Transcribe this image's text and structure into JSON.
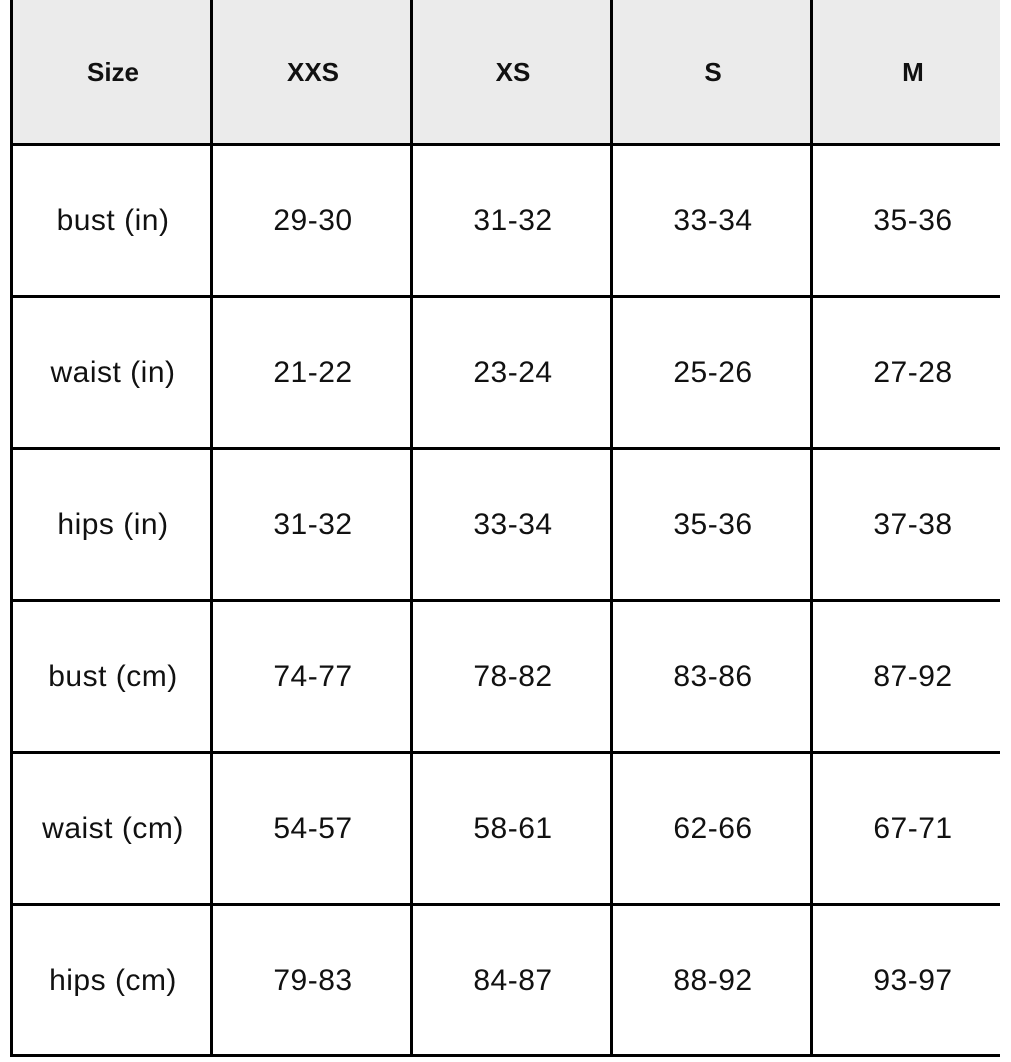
{
  "table": {
    "header_bg": "#ebebeb",
    "border_color": "#000000",
    "columns": [
      "Size",
      "XXS",
      "XS",
      "S",
      "M"
    ],
    "rows": [
      [
        "bust (in)",
        "29-30",
        "31-32",
        "33-34",
        "35-36"
      ],
      [
        "waist (in)",
        "21-22",
        "23-24",
        "25-26",
        "27-28"
      ],
      [
        "hips (in)",
        "31-32",
        "33-34",
        "35-36",
        "37-38"
      ],
      [
        "bust (cm)",
        "74-77",
        "78-82",
        "83-86",
        "87-92"
      ],
      [
        "waist (cm)",
        "54-57",
        "58-61",
        "62-66",
        "67-71"
      ],
      [
        "hips (cm)",
        "79-83",
        "84-87",
        "88-92",
        "93-97"
      ]
    ]
  }
}
